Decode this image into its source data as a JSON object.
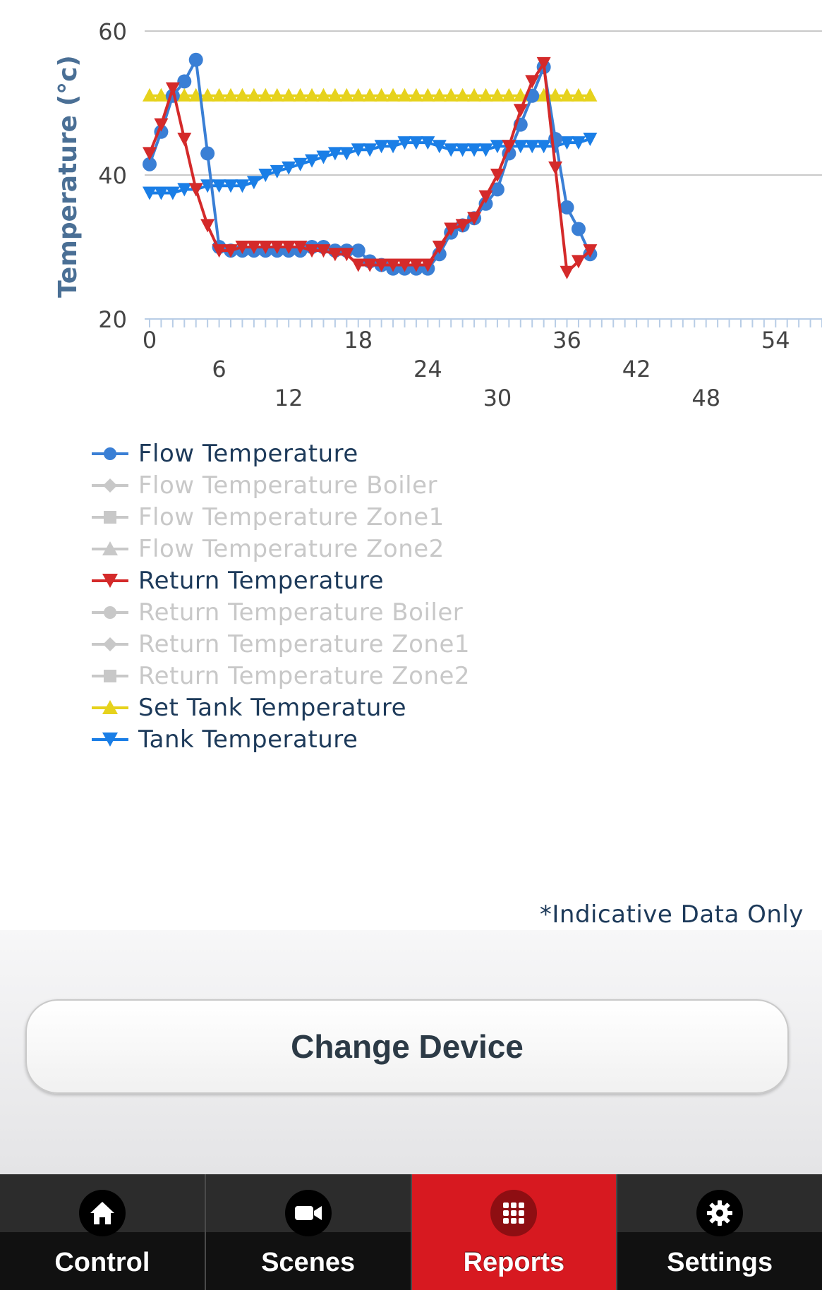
{
  "chart_data": {
    "type": "line",
    "ylabel": "Temperature (°c)",
    "ylim": [
      20,
      60
    ],
    "y_ticks": [
      20,
      40,
      60
    ],
    "xlim": [
      0,
      58
    ],
    "x_ticks": [
      0,
      6,
      12,
      18,
      24,
      30,
      36,
      42,
      48,
      54
    ],
    "grid": true,
    "legend_position": "bottom-left",
    "series": [
      {
        "name": "Flow Temperature",
        "color": "#3a7fd5",
        "marker": "circle",
        "visible": true,
        "x": [
          0,
          1,
          2,
          3,
          4,
          5,
          6,
          7,
          8,
          9,
          10,
          11,
          12,
          13,
          14,
          15,
          16,
          17,
          18,
          19,
          20,
          21,
          22,
          23,
          24,
          25,
          26,
          27,
          28,
          29,
          30,
          31,
          32,
          33,
          34,
          35,
          36,
          37,
          38
        ],
        "y": [
          41.5,
          46,
          51,
          53,
          56,
          43,
          30,
          29.5,
          29.5,
          29.5,
          29.5,
          29.5,
          29.5,
          29.5,
          30,
          30,
          29.5,
          29.5,
          29.5,
          28,
          27.5,
          27,
          27,
          27,
          27,
          29,
          32,
          33,
          34,
          36,
          38,
          43,
          47,
          51,
          55,
          45,
          35.5,
          32.5,
          29
        ]
      },
      {
        "name": "Flow Temperature Boiler",
        "color": "#c8c8c8",
        "marker": "diamond",
        "visible": false,
        "x": [],
        "y": []
      },
      {
        "name": "Flow Temperature Zone1",
        "color": "#c8c8c8",
        "marker": "square",
        "visible": false,
        "x": [],
        "y": []
      },
      {
        "name": "Flow Temperature Zone2",
        "color": "#c8c8c8",
        "marker": "triangle",
        "visible": false,
        "x": [],
        "y": []
      },
      {
        "name": "Return Temperature",
        "color": "#d42a2a",
        "marker": "triangle-down",
        "visible": true,
        "x": [
          0,
          1,
          2,
          3,
          4,
          5,
          6,
          7,
          8,
          9,
          10,
          11,
          12,
          13,
          14,
          15,
          16,
          17,
          18,
          19,
          20,
          21,
          22,
          23,
          24,
          25,
          26,
          27,
          28,
          29,
          30,
          31,
          32,
          33,
          34,
          35,
          36,
          37,
          38
        ],
        "y": [
          43,
          47,
          52,
          45,
          38,
          33,
          29.5,
          29.5,
          30,
          30,
          30,
          30,
          30,
          30,
          29.5,
          29.5,
          29,
          29,
          27.5,
          27.5,
          27.5,
          27.5,
          27.5,
          27.5,
          27.5,
          30,
          32.5,
          33,
          34,
          37,
          40,
          44,
          49,
          53,
          55.5,
          41,
          26.5,
          28,
          29.5
        ]
      },
      {
        "name": "Return Temperature Boiler",
        "color": "#c8c8c8",
        "marker": "circle",
        "visible": false,
        "x": [],
        "y": []
      },
      {
        "name": "Return Temperature Zone1",
        "color": "#c8c8c8",
        "marker": "diamond",
        "visible": false,
        "x": [],
        "y": []
      },
      {
        "name": "Return Temperature Zone2",
        "color": "#c8c8c8",
        "marker": "square",
        "visible": false,
        "x": [],
        "y": []
      },
      {
        "name": "Set Tank Temperature",
        "color": "#e6d21c",
        "marker": "triangle",
        "visible": true,
        "x": [
          0,
          1,
          2,
          3,
          4,
          5,
          6,
          7,
          8,
          9,
          10,
          11,
          12,
          13,
          14,
          15,
          16,
          17,
          18,
          19,
          20,
          21,
          22,
          23,
          24,
          25,
          26,
          27,
          28,
          29,
          30,
          31,
          32,
          33,
          34,
          35,
          36,
          37,
          38
        ],
        "y": [
          51,
          51,
          51,
          51,
          51,
          51,
          51,
          51,
          51,
          51,
          51,
          51,
          51,
          51,
          51,
          51,
          51,
          51,
          51,
          51,
          51,
          51,
          51,
          51,
          51,
          51,
          51,
          51,
          51,
          51,
          51,
          51,
          51,
          51,
          51,
          51,
          51,
          51,
          51
        ]
      },
      {
        "name": "Tank Temperature",
        "color": "#1a7ee6",
        "marker": "triangle-down",
        "visible": true,
        "x": [
          0,
          1,
          2,
          3,
          4,
          5,
          6,
          7,
          8,
          9,
          10,
          11,
          12,
          13,
          14,
          15,
          16,
          17,
          18,
          19,
          20,
          21,
          22,
          23,
          24,
          25,
          26,
          27,
          28,
          29,
          30,
          31,
          32,
          33,
          34,
          35,
          36,
          37,
          38
        ],
        "y": [
          37.5,
          37.5,
          37.5,
          38,
          38,
          38.5,
          38.5,
          38.5,
          38.5,
          39,
          40,
          40.5,
          41,
          41.5,
          42,
          42.5,
          43,
          43,
          43.5,
          43.5,
          44,
          44,
          44.5,
          44.5,
          44.5,
          44,
          43.5,
          43.5,
          43.5,
          43.5,
          44,
          44,
          44,
          44,
          44,
          44,
          44.5,
          44.5,
          45
        ]
      }
    ]
  },
  "disclaimer": "*Indicative Data Only",
  "button": {
    "label": "Change Device"
  },
  "tabs": [
    {
      "label": "Control",
      "icon": "home-icon",
      "active": false
    },
    {
      "label": "Scenes",
      "icon": "video-camera-icon",
      "active": false
    },
    {
      "label": "Reports",
      "icon": "grid-icon",
      "active": true
    },
    {
      "label": "Settings",
      "icon": "gear-icon",
      "active": false
    }
  ],
  "colors": {
    "active_tab": "#d71920",
    "text_dark": "#1d3a5a",
    "inactive_legend": "#c8c8c8"
  }
}
